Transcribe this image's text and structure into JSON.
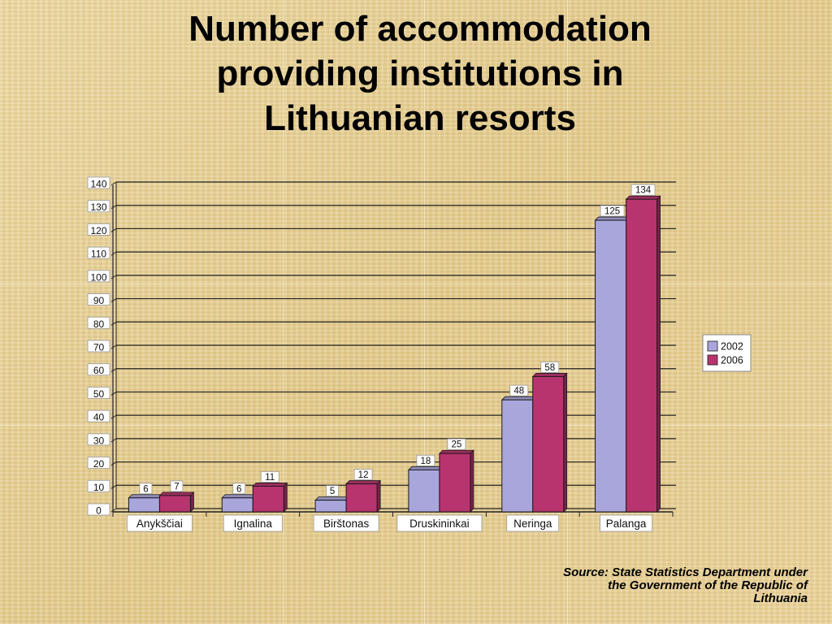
{
  "slide": {
    "title_lines": [
      "Number of accommodation",
      "providing institutions in",
      "Lithuanian resorts"
    ],
    "source_lines": [
      "Source: State Statistics Department under",
      "the Government of the Republic of",
      "Lithuania"
    ]
  },
  "chart_data": {
    "type": "bar",
    "title": "",
    "xlabel": "",
    "ylabel": "",
    "categories": [
      "Anykščiai",
      "Ignalina",
      "Birštonas",
      "Druskininkai",
      "Neringa",
      "Palanga"
    ],
    "series": [
      {
        "name": "2002",
        "values": [
          6,
          6,
          5,
          18,
          48,
          125
        ],
        "color": "#a9a6dc"
      },
      {
        "name": "2006",
        "values": [
          7,
          11,
          12,
          25,
          58,
          134
        ],
        "color": "#b8346f"
      }
    ],
    "ylim": [
      0,
      140
    ],
    "yticks": [
      0,
      10,
      20,
      30,
      40,
      50,
      60,
      70,
      80,
      90,
      100,
      110,
      120,
      130,
      140
    ],
    "grid": true,
    "legend": "right",
    "data_labels": true
  }
}
